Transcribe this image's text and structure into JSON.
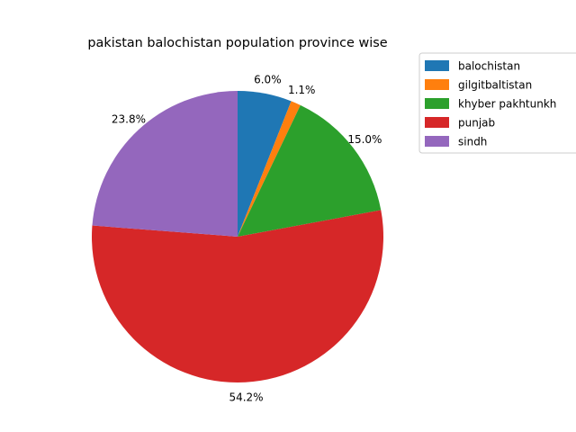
{
  "chart_data": {
    "type": "pie",
    "title": "pakistan balochistan population province wise",
    "categories": [
      "balochistan",
      "gilgitbaltistan",
      "khyber pakhtunkh",
      "punjab",
      "sindh"
    ],
    "values": [
      6.0,
      1.1,
      15.0,
      54.2,
      23.8
    ],
    "labels": [
      "6.0%",
      "1.1%",
      "15.0%",
      "54.2%",
      "23.8%"
    ],
    "colors": [
      "#1f77b4",
      "#ff7f0e",
      "#2ca02c",
      "#d62728",
      "#9467bd"
    ],
    "start_angle_deg": 90,
    "direction": "clockwise",
    "legend_position": "upper-right, outside plot"
  }
}
